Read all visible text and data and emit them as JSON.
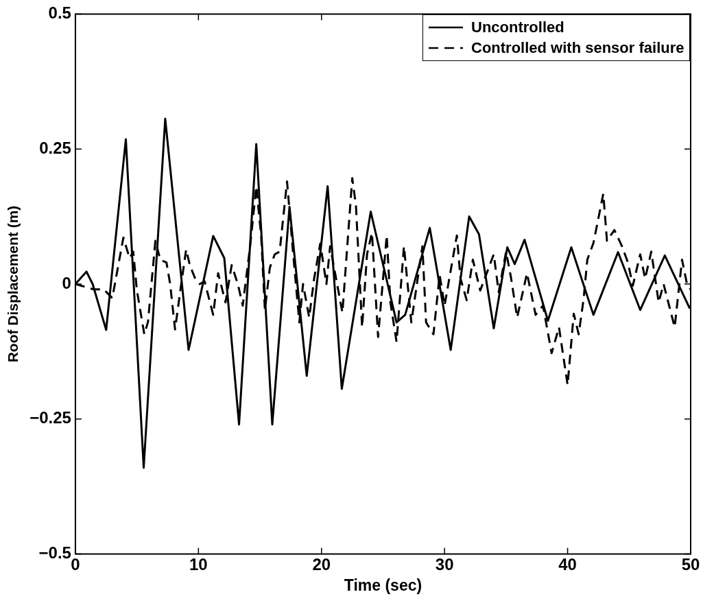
{
  "chart_data": {
    "type": "line",
    "xlabel": "Time (sec)",
    "ylabel": "Roof Displacement (m)",
    "xlim": [
      0,
      50
    ],
    "xticks": [
      0,
      10,
      20,
      30,
      40,
      50
    ],
    "ylim": [
      -0.5,
      0.5
    ],
    "yticks": [
      -0.5,
      -0.25,
      0,
      0.25,
      0.5
    ],
    "legend": "top right",
    "marker": "none",
    "grid": false,
    "series": [
      {
        "name": "Uncontrolled",
        "color": "#000000",
        "line_style": "solid",
        "x": [
          0,
          0.9,
          1.4,
          2.5,
          4.1,
          5.55,
          7.3,
          9.2,
          11.2,
          12.1,
          13.3,
          14.7,
          16.0,
          17.4,
          18.8,
          20.5,
          21.65,
          24.0,
          26.1,
          26.8,
          28.8,
          30.5,
          32.0,
          32.8,
          34.0,
          35.1,
          35.7,
          36.5,
          38.4,
          40.3,
          42.1,
          44.1,
          45.9,
          47.9,
          49.9,
          50
        ],
        "values": [
          0,
          0.023,
          0,
          -0.085,
          0.268,
          -0.34,
          0.306,
          -0.122,
          0.089,
          0.048,
          -0.26,
          0.259,
          -0.26,
          0.143,
          -0.17,
          0.181,
          -0.194,
          0.134,
          -0.071,
          -0.057,
          0.104,
          -0.122,
          0.125,
          0.092,
          -0.082,
          0.068,
          0.037,
          0.082,
          -0.068,
          0.068,
          -0.057,
          0.059,
          -0.048,
          0.053,
          -0.044,
          -0.04
        ]
      },
      {
        "name": "Controlled with sensor failure",
        "color": "#000000",
        "line_style": "dashed",
        "x": [
          0,
          1.5,
          2.3,
          3.0,
          3.9,
          4.4,
          4.7,
          5.0,
          5.6,
          5.9,
          6.5,
          6.9,
          7.4,
          7.7,
          8.1,
          8.6,
          9.0,
          9.3,
          9.7,
          10.1,
          10.5,
          11.2,
          11.6,
          12.2,
          12.7,
          13.2,
          13.6,
          14.2,
          14.7,
          15.1,
          15.4,
          15.8,
          16.2,
          16.6,
          17.2,
          17.7,
          18.2,
          18.5,
          19.0,
          19.4,
          19.9,
          20.4,
          20.7,
          21.7,
          22.5,
          22.8,
          23.3,
          23.7,
          24.1,
          24.6,
          25.3,
          25.6,
          26.1,
          26.7,
          27.3,
          28.2,
          28.5,
          29.1,
          29.6,
          30.0,
          31.0,
          31.3,
          31.8,
          32.3,
          32.9,
          34.0,
          34.4,
          35.0,
          35.4,
          35.9,
          36.7,
          37.4,
          38.0,
          38.7,
          39.3,
          40.0,
          40.5,
          40.9,
          41.3,
          41.6,
          42.1,
          42.9,
          43.2,
          43.8,
          44.4,
          44.9,
          45.3,
          45.9,
          46.3,
          46.8,
          47.4,
          47.8,
          48.7,
          49.3,
          49.7,
          50
        ],
        "values": [
          0,
          -0.01,
          -0.01,
          -0.026,
          0.086,
          0.048,
          0.06,
          -0.012,
          -0.093,
          -0.07,
          0.08,
          0.045,
          0.04,
          0,
          -0.084,
          0,
          0.064,
          0.035,
          0.012,
          0,
          0.005,
          -0.057,
          0.02,
          -0.034,
          0.035,
          0,
          -0.04,
          0.07,
          0.181,
          0.088,
          -0.048,
          0.03,
          0.055,
          0.06,
          0.19,
          0.055,
          -0.071,
          0,
          -0.062,
          0.01,
          0.075,
          0,
          0.07,
          -0.053,
          0.196,
          0.145,
          -0.08,
          0.055,
          0.095,
          -0.098,
          0.09,
          -0.034,
          -0.107,
          0.07,
          -0.071,
          0.07,
          -0.071,
          -0.093,
          0.017,
          -0.04,
          0.09,
          0.01,
          -0.03,
          0.045,
          -0.012,
          0.055,
          -0.015,
          0.06,
          0.012,
          -0.062,
          0.02,
          -0.057,
          -0.04,
          -0.128,
          -0.08,
          -0.187,
          -0.055,
          -0.093,
          -0.028,
          0.045,
          0.076,
          0.167,
          0.08,
          0.1,
          0.071,
          0.04,
          -0.003,
          0.055,
          0.01,
          0.06,
          -0.034,
          0,
          -0.08,
          0.045,
          0,
          -0.01
        ]
      }
    ]
  }
}
